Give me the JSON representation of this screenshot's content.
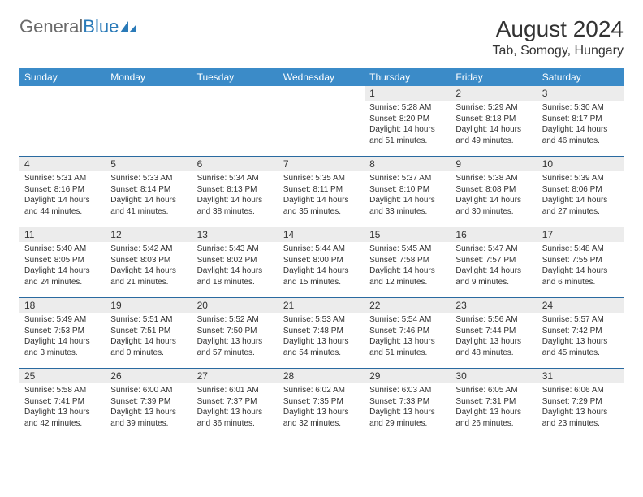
{
  "brand": {
    "part1": "General",
    "part2": "Blue"
  },
  "title": "August 2024",
  "location": "Tab, Somogy, Hungary",
  "colors": {
    "header_bg": "#3b8bc8",
    "header_text": "#ffffff",
    "daynum_bg": "#ececec",
    "border": "#2a6aa0",
    "text": "#333333",
    "logo_gray": "#6a6a6a",
    "logo_blue": "#2a7ab8"
  },
  "day_names": [
    "Sunday",
    "Monday",
    "Tuesday",
    "Wednesday",
    "Thursday",
    "Friday",
    "Saturday"
  ],
  "weeks": [
    [
      {
        "n": "",
        "t": ""
      },
      {
        "n": "",
        "t": ""
      },
      {
        "n": "",
        "t": ""
      },
      {
        "n": "",
        "t": ""
      },
      {
        "n": "1",
        "t": "Sunrise: 5:28 AM\nSunset: 8:20 PM\nDaylight: 14 hours and 51 minutes."
      },
      {
        "n": "2",
        "t": "Sunrise: 5:29 AM\nSunset: 8:18 PM\nDaylight: 14 hours and 49 minutes."
      },
      {
        "n": "3",
        "t": "Sunrise: 5:30 AM\nSunset: 8:17 PM\nDaylight: 14 hours and 46 minutes."
      }
    ],
    [
      {
        "n": "4",
        "t": "Sunrise: 5:31 AM\nSunset: 8:16 PM\nDaylight: 14 hours and 44 minutes."
      },
      {
        "n": "5",
        "t": "Sunrise: 5:33 AM\nSunset: 8:14 PM\nDaylight: 14 hours and 41 minutes."
      },
      {
        "n": "6",
        "t": "Sunrise: 5:34 AM\nSunset: 8:13 PM\nDaylight: 14 hours and 38 minutes."
      },
      {
        "n": "7",
        "t": "Sunrise: 5:35 AM\nSunset: 8:11 PM\nDaylight: 14 hours and 35 minutes."
      },
      {
        "n": "8",
        "t": "Sunrise: 5:37 AM\nSunset: 8:10 PM\nDaylight: 14 hours and 33 minutes."
      },
      {
        "n": "9",
        "t": "Sunrise: 5:38 AM\nSunset: 8:08 PM\nDaylight: 14 hours and 30 minutes."
      },
      {
        "n": "10",
        "t": "Sunrise: 5:39 AM\nSunset: 8:06 PM\nDaylight: 14 hours and 27 minutes."
      }
    ],
    [
      {
        "n": "11",
        "t": "Sunrise: 5:40 AM\nSunset: 8:05 PM\nDaylight: 14 hours and 24 minutes."
      },
      {
        "n": "12",
        "t": "Sunrise: 5:42 AM\nSunset: 8:03 PM\nDaylight: 14 hours and 21 minutes."
      },
      {
        "n": "13",
        "t": "Sunrise: 5:43 AM\nSunset: 8:02 PM\nDaylight: 14 hours and 18 minutes."
      },
      {
        "n": "14",
        "t": "Sunrise: 5:44 AM\nSunset: 8:00 PM\nDaylight: 14 hours and 15 minutes."
      },
      {
        "n": "15",
        "t": "Sunrise: 5:45 AM\nSunset: 7:58 PM\nDaylight: 14 hours and 12 minutes."
      },
      {
        "n": "16",
        "t": "Sunrise: 5:47 AM\nSunset: 7:57 PM\nDaylight: 14 hours and 9 minutes."
      },
      {
        "n": "17",
        "t": "Sunrise: 5:48 AM\nSunset: 7:55 PM\nDaylight: 14 hours and 6 minutes."
      }
    ],
    [
      {
        "n": "18",
        "t": "Sunrise: 5:49 AM\nSunset: 7:53 PM\nDaylight: 14 hours and 3 minutes."
      },
      {
        "n": "19",
        "t": "Sunrise: 5:51 AM\nSunset: 7:51 PM\nDaylight: 14 hours and 0 minutes."
      },
      {
        "n": "20",
        "t": "Sunrise: 5:52 AM\nSunset: 7:50 PM\nDaylight: 13 hours and 57 minutes."
      },
      {
        "n": "21",
        "t": "Sunrise: 5:53 AM\nSunset: 7:48 PM\nDaylight: 13 hours and 54 minutes."
      },
      {
        "n": "22",
        "t": "Sunrise: 5:54 AM\nSunset: 7:46 PM\nDaylight: 13 hours and 51 minutes."
      },
      {
        "n": "23",
        "t": "Sunrise: 5:56 AM\nSunset: 7:44 PM\nDaylight: 13 hours and 48 minutes."
      },
      {
        "n": "24",
        "t": "Sunrise: 5:57 AM\nSunset: 7:42 PM\nDaylight: 13 hours and 45 minutes."
      }
    ],
    [
      {
        "n": "25",
        "t": "Sunrise: 5:58 AM\nSunset: 7:41 PM\nDaylight: 13 hours and 42 minutes."
      },
      {
        "n": "26",
        "t": "Sunrise: 6:00 AM\nSunset: 7:39 PM\nDaylight: 13 hours and 39 minutes."
      },
      {
        "n": "27",
        "t": "Sunrise: 6:01 AM\nSunset: 7:37 PM\nDaylight: 13 hours and 36 minutes."
      },
      {
        "n": "28",
        "t": "Sunrise: 6:02 AM\nSunset: 7:35 PM\nDaylight: 13 hours and 32 minutes."
      },
      {
        "n": "29",
        "t": "Sunrise: 6:03 AM\nSunset: 7:33 PM\nDaylight: 13 hours and 29 minutes."
      },
      {
        "n": "30",
        "t": "Sunrise: 6:05 AM\nSunset: 7:31 PM\nDaylight: 13 hours and 26 minutes."
      },
      {
        "n": "31",
        "t": "Sunrise: 6:06 AM\nSunset: 7:29 PM\nDaylight: 13 hours and 23 minutes."
      }
    ]
  ]
}
